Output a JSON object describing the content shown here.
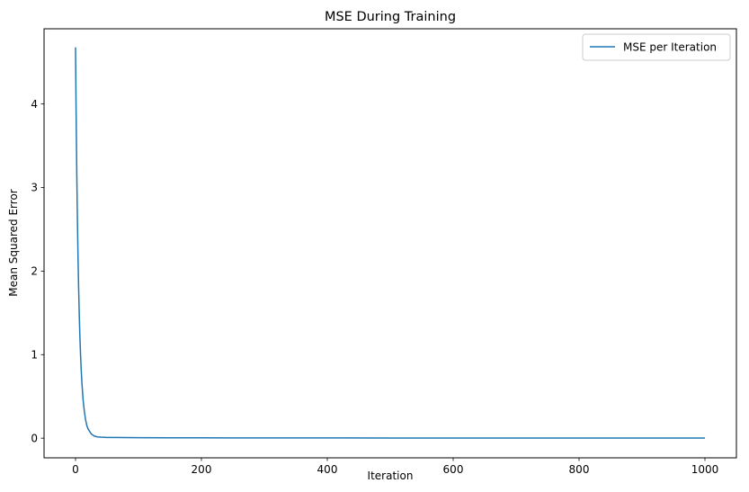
{
  "chart_data": {
    "type": "line",
    "title": "MSE During Training",
    "xlabel": "Iteration",
    "ylabel": "Mean Squared Error",
    "xlim": [
      -50,
      1050
    ],
    "ylim": [
      -0.235,
      4.9
    ],
    "xticks": [
      0,
      200,
      400,
      600,
      800,
      1000
    ],
    "yticks": [
      0,
      1,
      2,
      3,
      4
    ],
    "grid": false,
    "legend_position": "top-right",
    "series": [
      {
        "name": "MSE per Iteration",
        "color": "#1f77b4",
        "x": [
          0,
          1,
          2,
          3,
          4,
          5,
          6,
          7,
          8,
          9,
          10,
          12,
          14,
          16,
          18,
          20,
          25,
          30,
          35,
          40,
          50,
          60,
          80,
          100,
          150,
          200,
          300,
          400,
          500,
          600,
          700,
          800,
          900,
          999
        ],
        "y": [
          4.67,
          3.85,
          3.17,
          2.61,
          2.15,
          1.77,
          1.46,
          1.2,
          0.99,
          0.82,
          0.68,
          0.46,
          0.32,
          0.22,
          0.15,
          0.11,
          0.05,
          0.025,
          0.015,
          0.012,
          0.009,
          0.008,
          0.007,
          0.006,
          0.005,
          0.004,
          0.003,
          0.003,
          0.002,
          0.002,
          0.002,
          0.002,
          0.002,
          0.002
        ]
      }
    ]
  }
}
